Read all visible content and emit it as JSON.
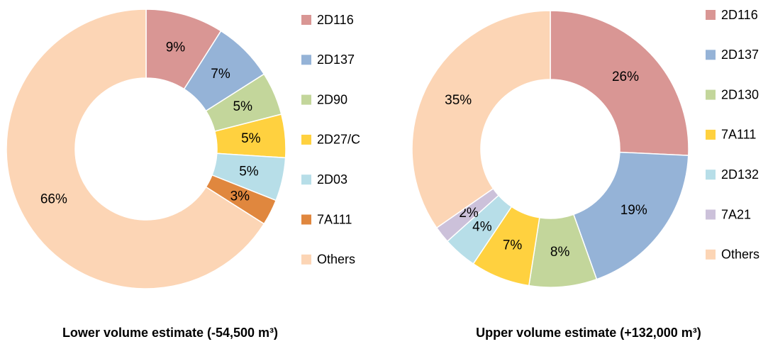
{
  "chart_data": [
    {
      "type": "pie",
      "title": "Lower volume estimate (-54,500 m³)",
      "categories": [
        "2D116",
        "2D137",
        "2D90",
        "2D27/C",
        "2D03",
        "7A111",
        "Others"
      ],
      "values": [
        9,
        7,
        5,
        5,
        5,
        3,
        66
      ],
      "value_labels": [
        "9%",
        "7%",
        "5%",
        "5%",
        "5%",
        "3%",
        "66%"
      ],
      "colors": [
        "#d99694",
        "#95b3d7",
        "#c3d69b",
        "#ffd13f",
        "#b7dee8",
        "#e0873e",
        "#fcd5b5"
      ]
    },
    {
      "type": "pie",
      "title": "Upper volume estimate (+132,000 m³)",
      "categories": [
        "2D116",
        "2D137",
        "2D130",
        "7A111",
        "2D132",
        "7A21",
        "Others"
      ],
      "values": [
        26,
        19,
        8,
        7,
        4,
        2,
        35
      ],
      "value_labels": [
        "26%",
        "19%",
        "8%",
        "7%",
        "4%",
        "2%",
        "35%"
      ],
      "colors": [
        "#d99694",
        "#95b3d7",
        "#c3d69b",
        "#ffd13f",
        "#b7dee8",
        "#ccc1da",
        "#fcd5b5"
      ]
    }
  ]
}
